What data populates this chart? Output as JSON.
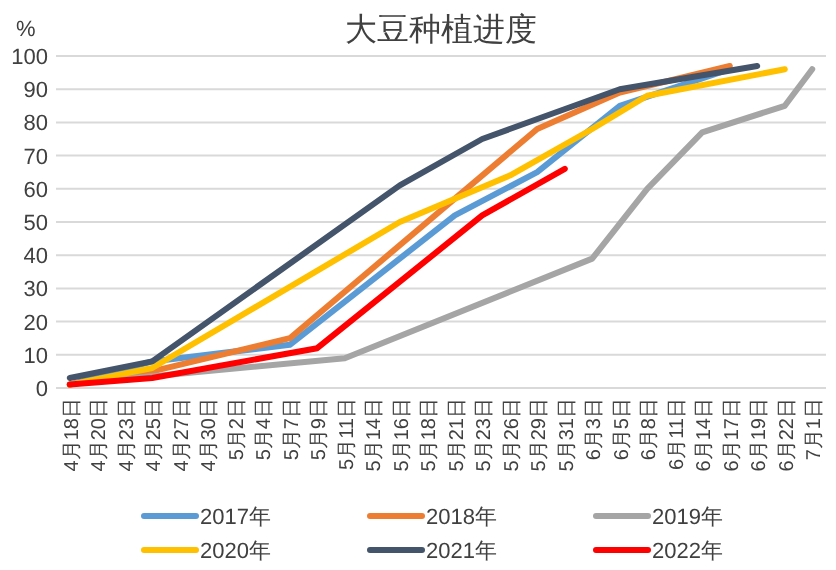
{
  "chart_data": {
    "type": "line",
    "title": "大豆种植进度",
    "ylabel": "%",
    "categories": [
      "4月18日",
      "4月20日",
      "4月23日",
      "4月25日",
      "4月27日",
      "4月30日",
      "5月2日",
      "5月4日",
      "5月7日",
      "5月9日",
      "5月11日",
      "5月14日",
      "5月16日",
      "5月18日",
      "5月21日",
      "5月23日",
      "5月26日",
      "5月29日",
      "5月31日",
      "6月3日",
      "6月5日",
      "6月8日",
      "6月11日",
      "6月14日",
      "6月17日",
      "6月19日",
      "6月22日",
      "7月1日"
    ],
    "ylim": [
      0,
      100
    ],
    "yticks": [
      0,
      10,
      20,
      30,
      40,
      50,
      60,
      70,
      80,
      90,
      100
    ],
    "grid": "y",
    "legend": "bottom",
    "marker": "none",
    "line_style": "solid",
    "series": [
      {
        "name": "2017年",
        "color": "#5b9bd5",
        "values": [
          1,
          null,
          null,
          8,
          null,
          null,
          null,
          null,
          13,
          null,
          null,
          null,
          null,
          null,
          52,
          null,
          null,
          65,
          null,
          null,
          85,
          null,
          null,
          null,
          96,
          null,
          null,
          null
        ]
      },
      {
        "name": "2018年",
        "color": "#ed7d31",
        "values": [
          1,
          null,
          null,
          5,
          null,
          null,
          null,
          null,
          15,
          null,
          null,
          null,
          null,
          null,
          null,
          null,
          null,
          78,
          null,
          null,
          89,
          null,
          null,
          null,
          97,
          null,
          null,
          null
        ]
      },
      {
        "name": "2019年",
        "color": "#a5a5a5",
        "values": [
          null,
          2,
          null,
          null,
          null,
          null,
          null,
          null,
          null,
          null,
          9,
          null,
          null,
          null,
          null,
          null,
          29,
          null,
          null,
          39,
          null,
          60,
          null,
          77,
          null,
          null,
          85,
          96
        ]
      },
      {
        "name": "2020年",
        "color": "#ffc000",
        "values": [
          1,
          null,
          null,
          6,
          null,
          null,
          null,
          null,
          null,
          null,
          null,
          null,
          50,
          null,
          null,
          null,
          64,
          null,
          null,
          78,
          null,
          88,
          null,
          null,
          null,
          null,
          96,
          null
        ]
      },
      {
        "name": "2021年",
        "color": "#44546a",
        "values": [
          3,
          null,
          null,
          8,
          null,
          null,
          null,
          null,
          null,
          null,
          null,
          null,
          61,
          null,
          null,
          75,
          null,
          null,
          null,
          null,
          90,
          null,
          null,
          null,
          null,
          97,
          null,
          null
        ]
      },
      {
        "name": "2022年",
        "color": "#ff0000",
        "values": [
          1,
          null,
          null,
          3,
          null,
          null,
          null,
          null,
          null,
          12,
          null,
          null,
          null,
          null,
          null,
          52,
          null,
          null,
          66,
          null,
          null,
          null,
          null,
          null,
          null,
          null,
          null,
          null
        ]
      }
    ]
  }
}
